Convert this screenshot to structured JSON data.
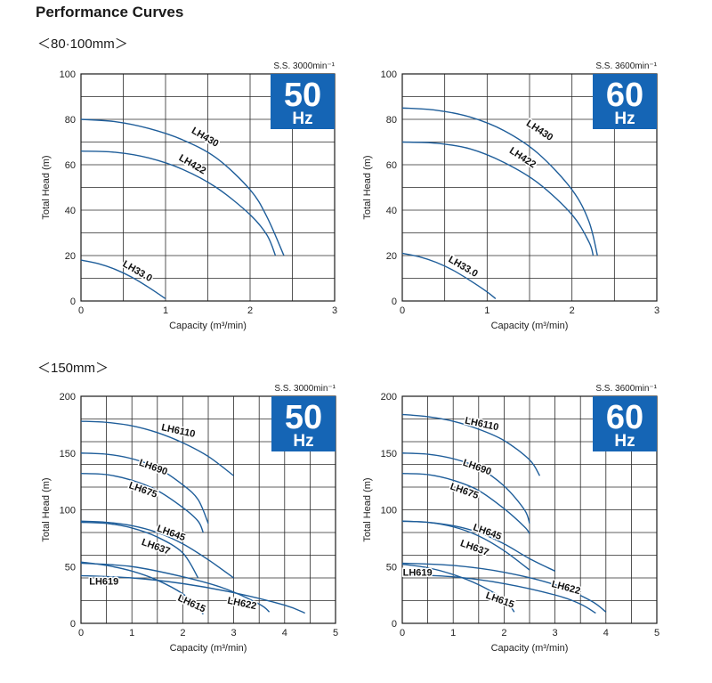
{
  "title": "Performance Curves",
  "sections": [
    "＜80·100mm＞",
    "＜150mm＞"
  ],
  "chart_data": [
    {
      "type": "line",
      "section": 0,
      "speed_label": "S.S. 3000min⁻¹",
      "badge": {
        "number": "50",
        "unit": "Hz",
        "color": "#1565b5"
      },
      "xlabel": "Capacity (m³/min)",
      "ylabel": "Total Head (m)",
      "xlim": [
        0,
        3
      ],
      "ylim": [
        0,
        100
      ],
      "xticks": [
        0,
        1,
        2,
        3
      ],
      "yticks": [
        0,
        20,
        40,
        60,
        80,
        100
      ],
      "series": [
        {
          "name": "LH430",
          "x": [
            0,
            0.4,
            0.8,
            1.2,
            1.6,
            2.0,
            2.2,
            2.4
          ],
          "y": [
            80,
            79,
            76,
            71,
            63,
            49,
            37,
            20
          ],
          "label_at": [
            1.45,
            71,
            30
          ]
        },
        {
          "name": "LH422",
          "x": [
            0,
            0.4,
            0.8,
            1.2,
            1.6,
            2.0,
            2.2,
            2.3
          ],
          "y": [
            66,
            65.5,
            63,
            58,
            50,
            38,
            29,
            20
          ],
          "label_at": [
            1.3,
            59,
            30
          ]
        },
        {
          "name": "LH33.0",
          "x": [
            0,
            0.2,
            0.4,
            0.6,
            0.8,
            1.0
          ],
          "y": [
            18,
            16.5,
            14,
            10.5,
            6,
            1
          ],
          "label_at": [
            0.65,
            12,
            30
          ]
        }
      ]
    },
    {
      "type": "line",
      "section": 0,
      "speed_label": "S.S. 3600min⁻¹",
      "badge": {
        "number": "60",
        "unit": "Hz",
        "color": "#1565b5"
      },
      "xlabel": "Capacity (m³/min)",
      "ylabel": "Total Head (m)",
      "xlim": [
        0,
        3
      ],
      "ylim": [
        0,
        100
      ],
      "xticks": [
        0,
        1,
        2,
        3
      ],
      "yticks": [
        0,
        20,
        40,
        60,
        80,
        100
      ],
      "series": [
        {
          "name": "LH430",
          "x": [
            0,
            0.4,
            0.8,
            1.2,
            1.6,
            2.0,
            2.2,
            2.3
          ],
          "y": [
            85,
            84,
            81,
            75,
            65,
            49,
            35,
            20
          ],
          "label_at": [
            1.6,
            74,
            33
          ]
        },
        {
          "name": "LH422",
          "x": [
            0,
            0.4,
            0.8,
            1.2,
            1.6,
            2.0,
            2.2,
            2.25
          ],
          "y": [
            70,
            69.5,
            67,
            61,
            52,
            38,
            26,
            20
          ],
          "label_at": [
            1.4,
            62,
            33
          ]
        },
        {
          "name": "LH33.0",
          "x": [
            0,
            0.2,
            0.4,
            0.6,
            0.8,
            1.0,
            1.1
          ],
          "y": [
            21,
            19.5,
            17,
            13.5,
            9,
            4,
            1
          ],
          "label_at": [
            0.7,
            14,
            30
          ]
        }
      ]
    },
    {
      "type": "line",
      "section": 1,
      "speed_label": "S.S. 3000min⁻¹",
      "badge": {
        "number": "50",
        "unit": "Hz",
        "color": "#1565b5"
      },
      "xlabel": "Capacity (m³/min)",
      "ylabel": "Total Head (m)",
      "xlim": [
        0,
        5
      ],
      "ylim": [
        0,
        200
      ],
      "xticks": [
        0,
        1,
        2,
        3,
        4,
        5
      ],
      "yticks": [
        0,
        50,
        100,
        150,
        200
      ],
      "series": [
        {
          "name": "LH6110",
          "x": [
            0,
            0.5,
            1.0,
            1.5,
            2.0,
            2.5,
            3.0
          ],
          "y": [
            178,
            177,
            174,
            168,
            159,
            147,
            130
          ],
          "label_at": [
            1.9,
            167,
            12
          ]
        },
        {
          "name": "LH690",
          "x": [
            0,
            0.5,
            1.0,
            1.5,
            2.0,
            2.3,
            2.5
          ],
          "y": [
            150,
            149,
            145,
            137,
            122,
            109,
            88
          ],
          "label_at": [
            1.4,
            135,
            20
          ]
        },
        {
          "name": "LH675",
          "x": [
            0,
            0.5,
            1.0,
            1.5,
            2.0,
            2.3,
            2.4
          ],
          "y": [
            132,
            131,
            126,
            117,
            102,
            90,
            80
          ],
          "label_at": [
            1.2,
            115,
            20
          ]
        },
        {
          "name": "LH645",
          "x": [
            0,
            0.5,
            1.0,
            1.5,
            2.0,
            2.5,
            3.0
          ],
          "y": [
            90,
            89,
            86,
            80,
            70,
            56,
            40
          ],
          "label_at": [
            1.75,
            77,
            20
          ]
        },
        {
          "name": "LH637",
          "x": [
            0,
            0.5,
            1.0,
            1.5,
            2.0,
            2.3
          ],
          "y": [
            89,
            88,
            84,
            76,
            62,
            40
          ],
          "label_at": [
            1.45,
            65,
            20
          ]
        },
        {
          "name": "LH619",
          "x": [
            0,
            1.0,
            2.0,
            3.0,
            4.0,
            4.4
          ],
          "y": [
            42,
            40,
            35,
            27,
            16,
            9
          ],
          "label_at": [
            0.45,
            34,
            0
          ]
        },
        {
          "name": "LH615",
          "x": [
            0,
            0.5,
            1.0,
            1.5,
            2.0,
            2.3,
            2.4
          ],
          "y": [
            54,
            51,
            46,
            38,
            26,
            14,
            8
          ],
          "label_at": [
            2.15,
            15,
            25
          ]
        },
        {
          "name": "LH622",
          "x": [
            0,
            1.0,
            2.0,
            2.8,
            3.5,
            3.7
          ],
          "y": [
            53,
            50,
            41,
            31,
            17,
            10
          ],
          "label_at": [
            3.15,
            15,
            12
          ]
        }
      ]
    },
    {
      "type": "line",
      "section": 1,
      "speed_label": "S.S. 3600min⁻¹",
      "badge": {
        "number": "60",
        "unit": "Hz",
        "color": "#1565b5"
      },
      "xlabel": "Capacity (m³/min)",
      "ylabel": "Total Head (m)",
      "xlim": [
        0,
        5
      ],
      "ylim": [
        0,
        200
      ],
      "xticks": [
        0,
        1,
        2,
        3,
        4,
        5
      ],
      "yticks": [
        0,
        50,
        100,
        150,
        200
      ],
      "series": [
        {
          "name": "LH6110",
          "x": [
            0,
            0.5,
            1.0,
            1.5,
            2.0,
            2.5,
            2.7
          ],
          "y": [
            184,
            182,
            178,
            171,
            161,
            144,
            130
          ],
          "label_at": [
            1.55,
            173,
            12
          ]
        },
        {
          "name": "LH690",
          "x": [
            0,
            0.5,
            1.0,
            1.5,
            2.0,
            2.4,
            2.5
          ],
          "y": [
            150,
            149,
            145,
            137,
            121,
            100,
            88
          ],
          "label_at": [
            1.45,
            135,
            20
          ]
        },
        {
          "name": "LH675",
          "x": [
            0,
            0.5,
            1.0,
            1.5,
            2.0,
            2.4,
            2.5
          ],
          "y": [
            132,
            131,
            126,
            117,
            101,
            85,
            79
          ],
          "label_at": [
            1.2,
            114,
            20
          ]
        },
        {
          "name": "LH645",
          "x": [
            0,
            0.5,
            1.0,
            1.5,
            2.0,
            2.5,
            3.0
          ],
          "y": [
            90,
            89,
            86,
            80,
            70,
            57,
            46
          ],
          "label_at": [
            1.65,
            78,
            20
          ]
        },
        {
          "name": "LH637",
          "x": [
            0,
            0.5,
            1.0,
            1.5,
            2.0,
            2.5
          ],
          "y": [
            90,
            89,
            85,
            77,
            64,
            47
          ],
          "label_at": [
            1.4,
            64,
            20
          ]
        },
        {
          "name": "LH619",
          "x": [
            0,
            1.0,
            2.0,
            3.0,
            3.5,
            3.8
          ],
          "y": [
            43,
            41,
            35,
            25,
            17,
            9
          ],
          "label_at": [
            0.3,
            42,
            0
          ]
        },
        {
          "name": "LH615",
          "x": [
            0,
            0.5,
            1.0,
            1.5,
            2.0,
            2.2
          ],
          "y": [
            52,
            49,
            43,
            34,
            21,
            10
          ],
          "label_at": [
            1.9,
            18,
            20
          ]
        },
        {
          "name": "LH622",
          "x": [
            0,
            1.0,
            2.0,
            3.0,
            3.7,
            4.0
          ],
          "y": [
            53,
            51,
            45,
            34,
            20,
            10
          ],
          "label_at": [
            3.2,
            29,
            15
          ]
        }
      ]
    }
  ]
}
